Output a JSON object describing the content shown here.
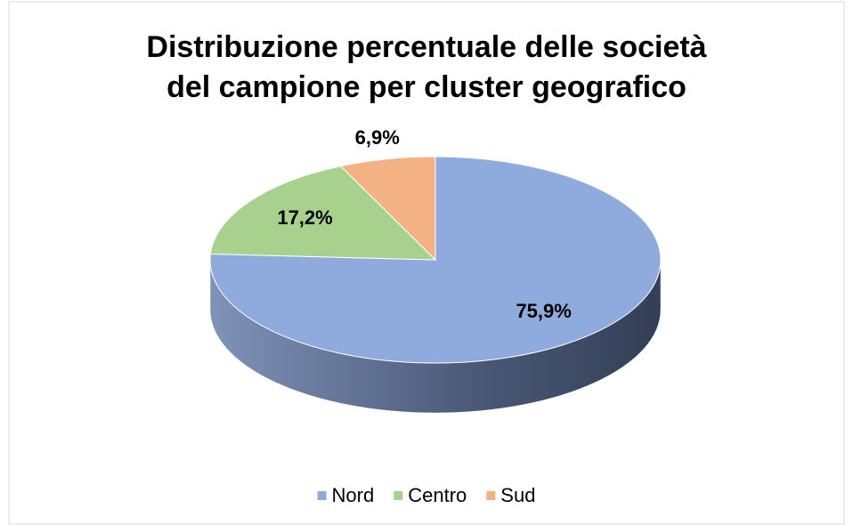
{
  "chart_data": {
    "type": "pie",
    "title": [
      "Distribuzione percentuale delle società",
      "del campione per cluster geografico"
    ],
    "categories": [
      "Nord",
      "Centro",
      "Sud"
    ],
    "values": [
      75.9,
      17.2,
      6.9
    ],
    "value_labels": [
      "75,9%",
      "17,2%",
      "6,9%"
    ],
    "colors": [
      "#8faadc",
      "#a9d18e",
      "#f4b183"
    ],
    "legend": "bottom"
  }
}
